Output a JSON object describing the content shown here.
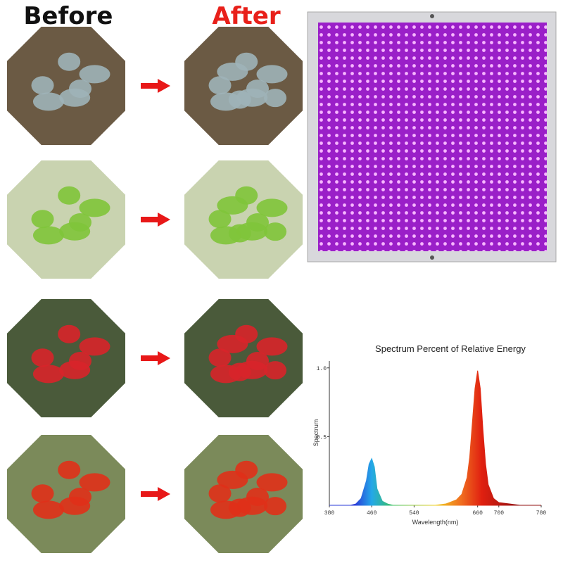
{
  "header": {
    "before": "Before",
    "after": "After"
  },
  "chart_data": {
    "type": "area",
    "title": "Spectrum  Percent of Relative Energy",
    "x_label": "Wavelength(nm)",
    "y_label": "Spectrum",
    "x": [
      380,
      400,
      420,
      430,
      440,
      450,
      455,
      460,
      465,
      470,
      480,
      490,
      500,
      540,
      580,
      600,
      620,
      630,
      640,
      645,
      650,
      655,
      660,
      665,
      670,
      675,
      680,
      690,
      700,
      720,
      740,
      780
    ],
    "values": [
      0,
      0,
      0,
      0.01,
      0.05,
      0.18,
      0.3,
      0.34,
      0.28,
      0.12,
      0.03,
      0.01,
      0,
      0,
      0,
      0.01,
      0.04,
      0.08,
      0.2,
      0.35,
      0.6,
      0.85,
      0.98,
      0.85,
      0.55,
      0.3,
      0.15,
      0.05,
      0.02,
      0.01,
      0,
      0
    ],
    "xlim": [
      380,
      780
    ],
    "ylim": [
      0,
      1.05
    ],
    "xticks": [
      380,
      460,
      540,
      660,
      700,
      780
    ],
    "yticks": [
      0.5,
      {
        "value": 1,
        "label": "1.0"
      }
    ]
  }
}
